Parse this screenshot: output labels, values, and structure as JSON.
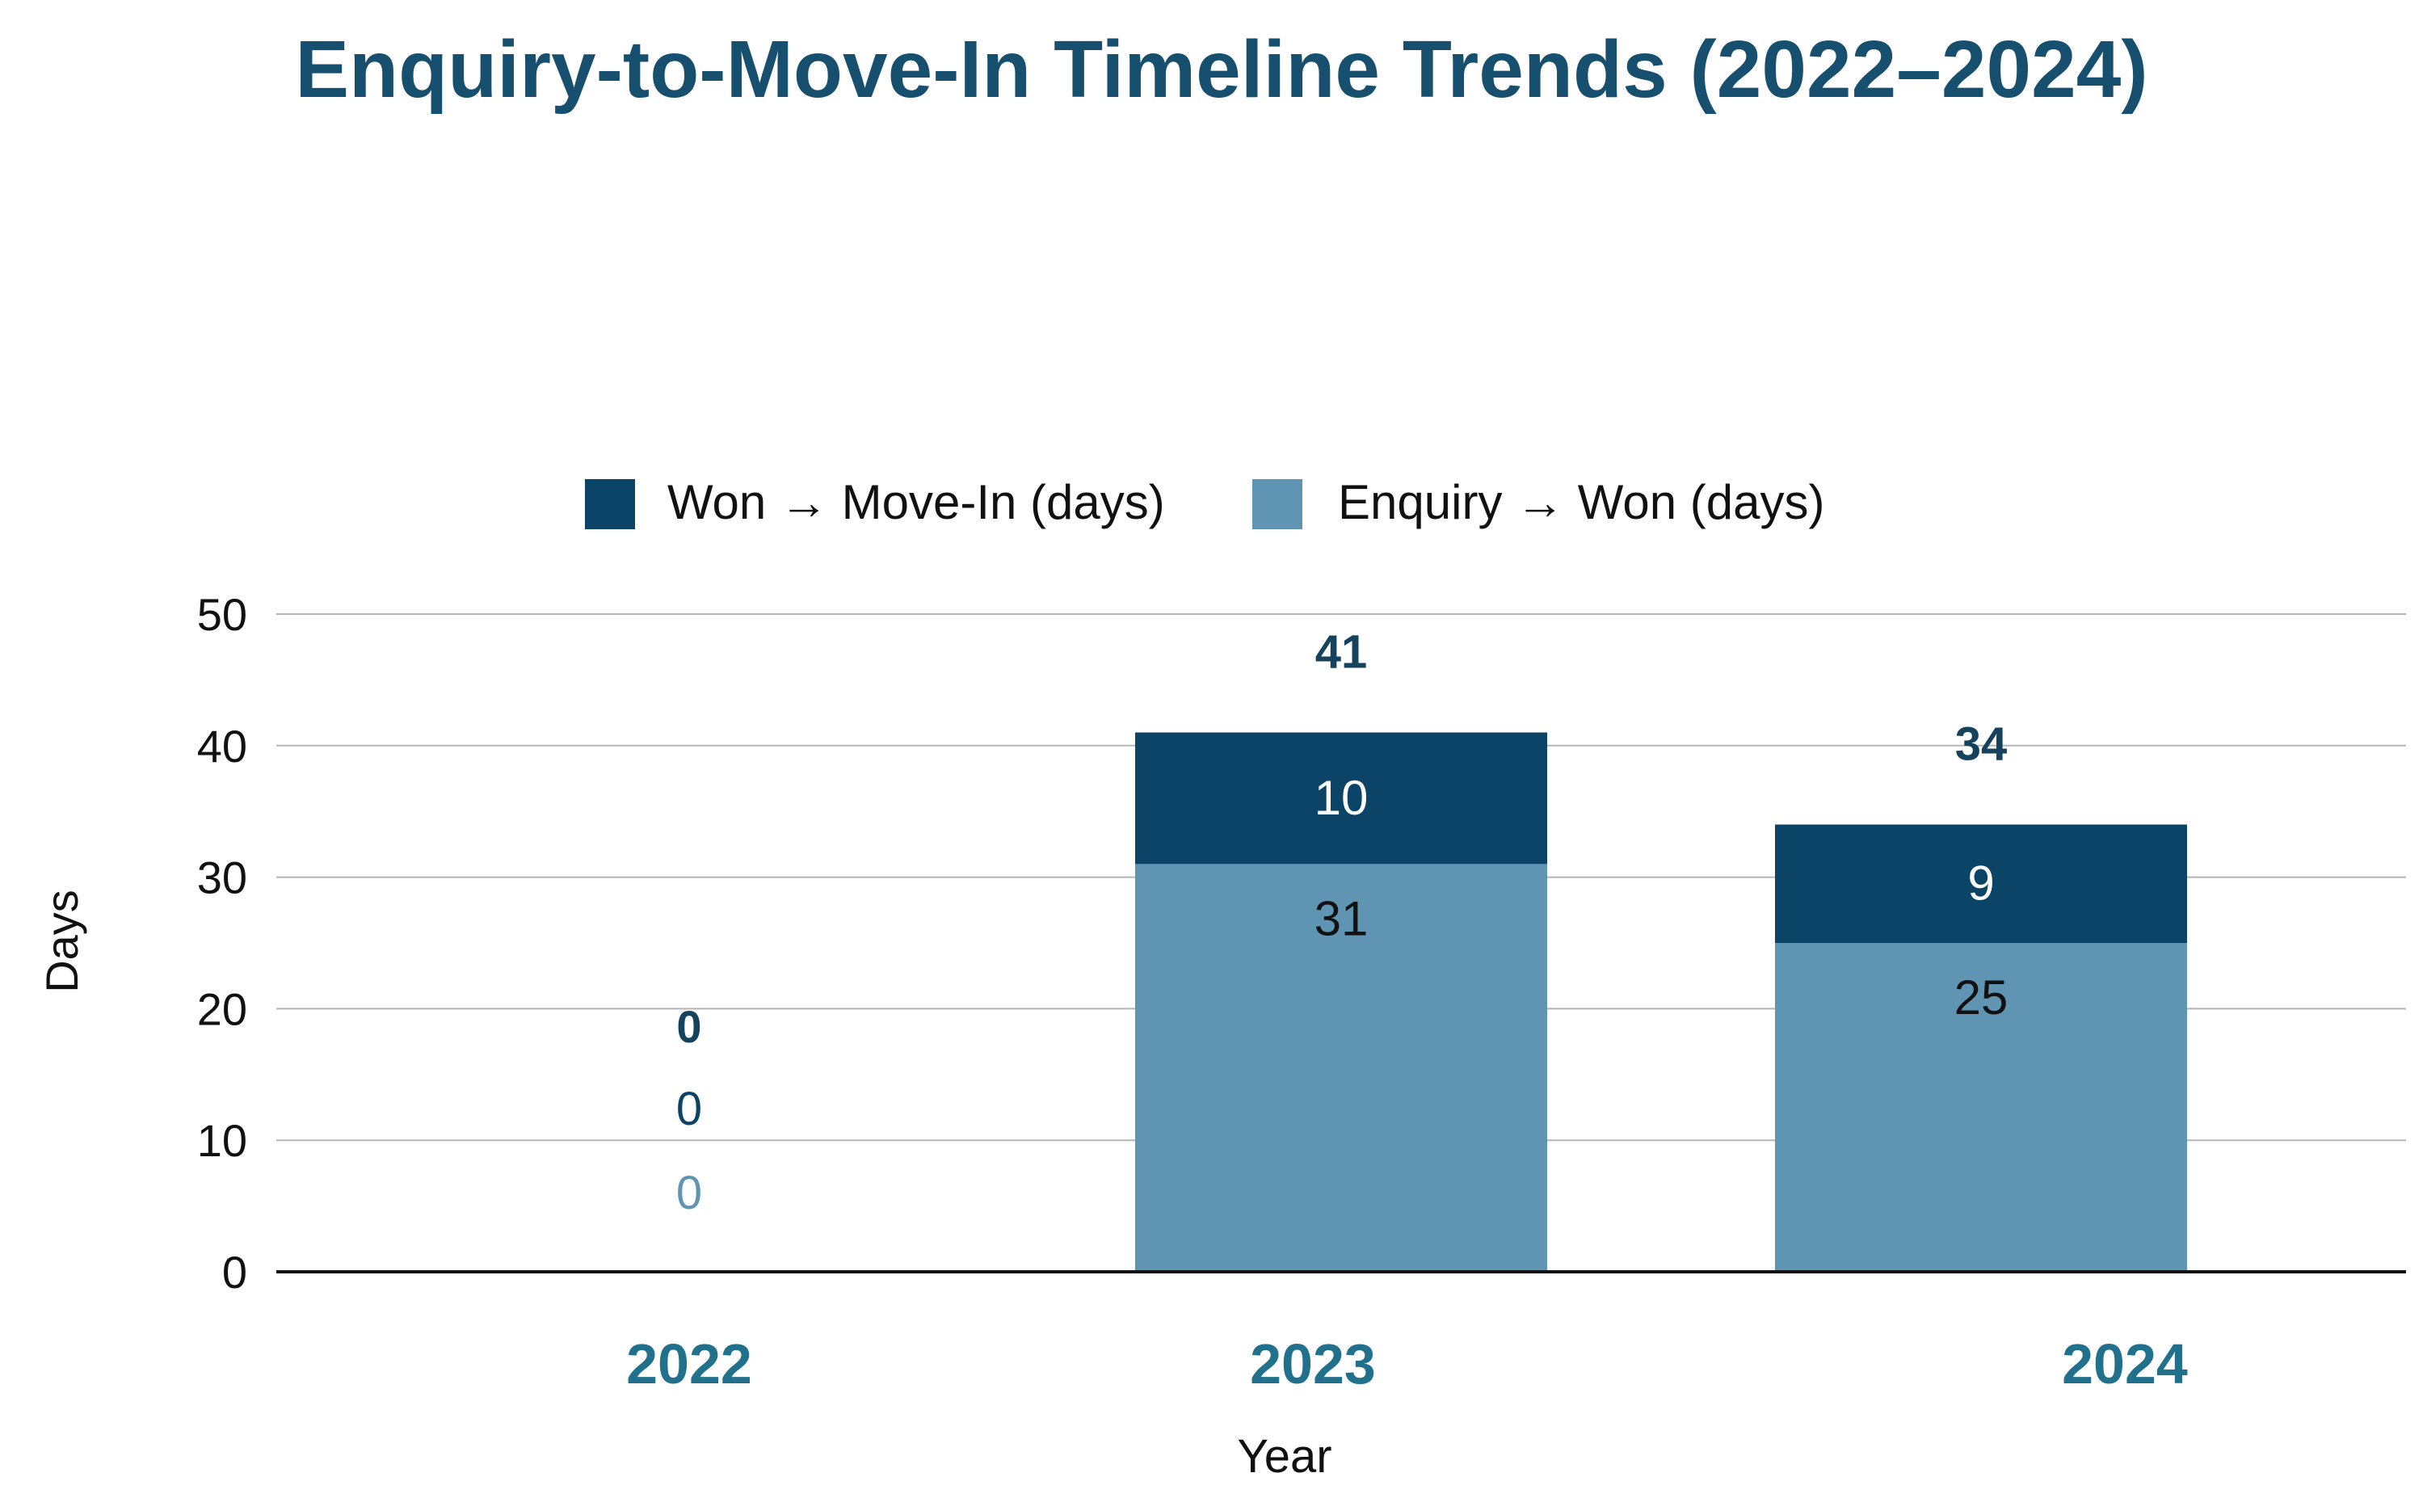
{
  "chart_data": {
    "type": "bar",
    "stacked": true,
    "title": "Enquiry-to-Move-In Timeline Trends (2022–2024)",
    "xlabel": "Year",
    "ylabel": "Days",
    "categories": [
      "2022",
      "2023",
      "2024"
    ],
    "ylim": [
      0,
      50
    ],
    "yticks": [
      0,
      10,
      20,
      30,
      40,
      50
    ],
    "grid": true,
    "legend_position": "top-center",
    "series": [
      {
        "name": "Enquiry → Won (days)",
        "color": "#5f95b2",
        "values": [
          0,
          31,
          25
        ],
        "labels": [
          "0",
          "31",
          "25"
        ]
      },
      {
        "name": "Won → Move-In (days)",
        "color": "#0b4466",
        "values": [
          0,
          10,
          9
        ],
        "labels": [
          "0",
          "10",
          "9"
        ]
      }
    ],
    "legend_order": [
      1,
      0
    ],
    "totals": [
      0,
      41,
      34
    ],
    "total_labels": [
      "0",
      "41",
      "34"
    ]
  },
  "colors": {
    "title": "#17506f",
    "category_label": "#21718c",
    "total_label": "#15435e",
    "axis": "#111111",
    "grid": "#b5b5b5",
    "text": "#111111",
    "inner_label_dark_bg": "#ffffff",
    "inner_label_light_bg": "#111111",
    "zero_label_top": "#0b4466",
    "zero_label_bottom": "#5f95b2"
  }
}
